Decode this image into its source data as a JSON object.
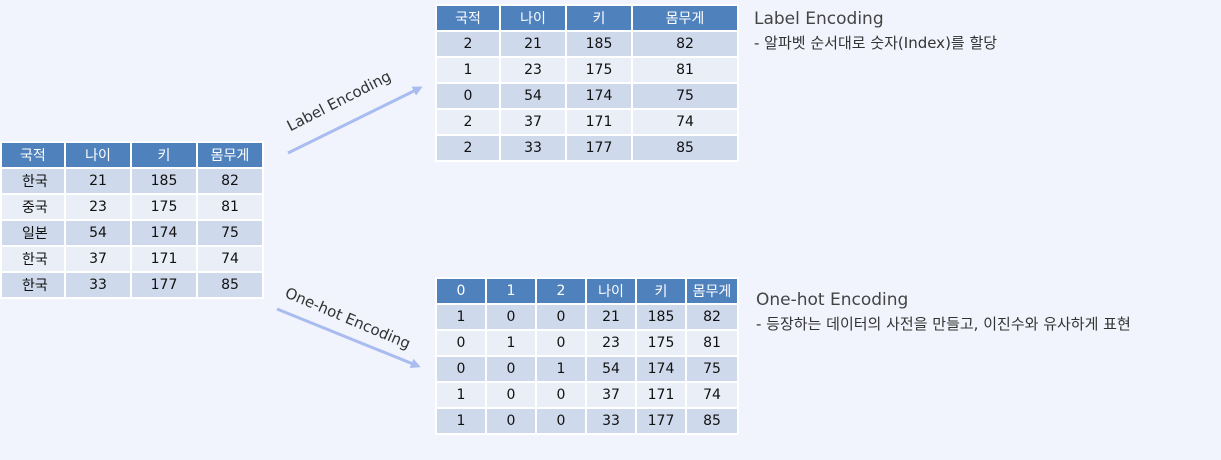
{
  "source_table": {
    "headers": [
      "국적",
      "나이",
      "키",
      "몸무게"
    ],
    "rows": [
      [
        "한국",
        "21",
        "185",
        "82"
      ],
      [
        "중국",
        "23",
        "175",
        "81"
      ],
      [
        "일본",
        "54",
        "174",
        "75"
      ],
      [
        "한국",
        "37",
        "171",
        "74"
      ],
      [
        "한국",
        "33",
        "177",
        "85"
      ]
    ]
  },
  "label_table": {
    "headers": [
      "국적",
      "나이",
      "키",
      "몸무게"
    ],
    "rows": [
      [
        "2",
        "21",
        "185",
        "82"
      ],
      [
        "1",
        "23",
        "175",
        "81"
      ],
      [
        "0",
        "54",
        "174",
        "75"
      ],
      [
        "2",
        "37",
        "171",
        "74"
      ],
      [
        "2",
        "33",
        "177",
        "85"
      ]
    ]
  },
  "onehot_table": {
    "headers": [
      "0",
      "1",
      "2",
      "나이",
      "키",
      "몸무게"
    ],
    "rows": [
      [
        "1",
        "0",
        "0",
        "21",
        "185",
        "82"
      ],
      [
        "0",
        "1",
        "0",
        "23",
        "175",
        "81"
      ],
      [
        "0",
        "0",
        "1",
        "54",
        "174",
        "75"
      ],
      [
        "1",
        "0",
        "0",
        "37",
        "171",
        "74"
      ],
      [
        "1",
        "0",
        "0",
        "33",
        "177",
        "85"
      ]
    ]
  },
  "arrows": {
    "label": "Label Encoding",
    "onehot": "One-hot Encoding"
  },
  "captions": {
    "label_title": "Label Encoding",
    "label_desc": "- 알파벳 순서대로 숫자(Index)를 할당",
    "onehot_title": "One-hot Encoding",
    "onehot_desc": "- 등장하는 데이터의 사전을 만들고, 이진수와 유사하게 표현"
  },
  "colors": {
    "header": "#4f81bd",
    "row_dark": "#cfd9ec",
    "row_light": "#e9eef7",
    "arrow": "#a9bcf0",
    "background": "#f1f4fc"
  }
}
